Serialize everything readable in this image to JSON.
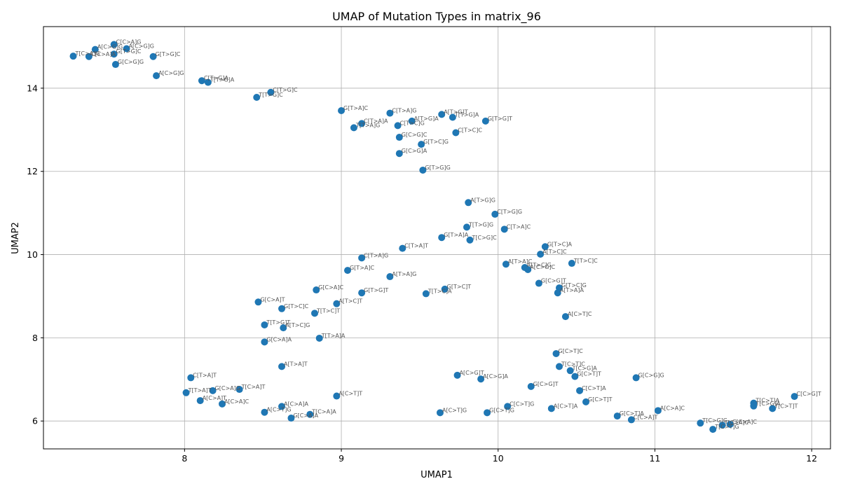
{
  "chart_data": {
    "type": "scatter",
    "title": "UMAP of Mutation Types in matrix_96",
    "xlabel": "UMAP1",
    "ylabel": "UMAP2",
    "xlim": [
      7.1,
      12.12
    ],
    "ylim": [
      5.33,
      15.48
    ],
    "xticks": [
      8,
      9,
      10,
      11,
      12
    ],
    "yticks": [
      6,
      8,
      10,
      12,
      14
    ],
    "grid": true,
    "marker_color": "#1f77b4",
    "label_color": "#555555",
    "points": [
      {
        "label": "C[C>A]G",
        "x": 7.55,
        "y": 15.05
      },
      {
        "label": "A[C>G]G",
        "x": 7.43,
        "y": 14.93
      },
      {
        "label": "A[C>G]G",
        "x": 7.63,
        "y": 14.95
      },
      {
        "label": "G[T>G]C",
        "x": 7.55,
        "y": 14.82
      },
      {
        "label": "T[C>A]G",
        "x": 7.29,
        "y": 14.77
      },
      {
        "label": "C[C>A]A",
        "x": 7.39,
        "y": 14.76
      },
      {
        "label": "G[T>G]C",
        "x": 7.8,
        "y": 14.76
      },
      {
        "label": "G[C>G]G",
        "x": 7.56,
        "y": 14.57
      },
      {
        "label": "A[C>G]G",
        "x": 7.82,
        "y": 14.3
      },
      {
        "label": "C[T>G]A",
        "x": 8.11,
        "y": 14.18
      },
      {
        "label": "T[T>G]A",
        "x": 8.15,
        "y": 14.14
      },
      {
        "label": "C[T>G]C",
        "x": 8.55,
        "y": 13.9
      },
      {
        "label": "T[T>G]C",
        "x": 8.46,
        "y": 13.78
      },
      {
        "label": "G[T>A]C",
        "x": 9.0,
        "y": 13.46
      },
      {
        "label": "C[T>A]G",
        "x": 9.31,
        "y": 13.4
      },
      {
        "label": "A[T>G]T",
        "x": 9.64,
        "y": 13.37
      },
      {
        "label": "T[T>G]A",
        "x": 9.71,
        "y": 13.3
      },
      {
        "label": "A[T>G]A",
        "x": 9.45,
        "y": 13.21
      },
      {
        "label": "G[T>G]T",
        "x": 9.92,
        "y": 13.21
      },
      {
        "label": "C[T>A]A",
        "x": 9.13,
        "y": 13.15
      },
      {
        "label": "C[T>C]G",
        "x": 9.36,
        "y": 13.1
      },
      {
        "label": "T[T>A]G",
        "x": 9.08,
        "y": 13.05
      },
      {
        "label": "C[T>C]C",
        "x": 9.73,
        "y": 12.93
      },
      {
        "label": "G[C>G]C",
        "x": 9.37,
        "y": 12.82
      },
      {
        "label": "G[T>C]G",
        "x": 9.51,
        "y": 12.65
      },
      {
        "label": "G[C>G]A",
        "x": 9.37,
        "y": 12.43
      },
      {
        "label": "G[T>G]G",
        "x": 9.52,
        "y": 12.03
      },
      {
        "label": "A[T>G]G",
        "x": 9.81,
        "y": 11.25
      },
      {
        "label": "C[T>G]G",
        "x": 9.98,
        "y": 10.97
      },
      {
        "label": "T[T>G]G",
        "x": 9.8,
        "y": 10.66
      },
      {
        "label": "C[T>A]C",
        "x": 10.04,
        "y": 10.61
      },
      {
        "label": "G[T>A]A",
        "x": 9.64,
        "y": 10.41
      },
      {
        "label": "T[C>G]C",
        "x": 9.82,
        "y": 10.35
      },
      {
        "label": "G[T>C]A",
        "x": 10.3,
        "y": 10.19
      },
      {
        "label": "C[T>A]T",
        "x": 9.39,
        "y": 10.15
      },
      {
        "label": "A[T>C]C",
        "x": 10.27,
        "y": 10.01
      },
      {
        "label": "C[T>A]G",
        "x": 9.13,
        "y": 9.92
      },
      {
        "label": "A[T>A]C",
        "x": 10.05,
        "y": 9.77
      },
      {
        "label": "T[T>C]C",
        "x": 10.47,
        "y": 9.79
      },
      {
        "label": "A[T>C]G",
        "x": 10.17,
        "y": 9.69
      },
      {
        "label": "A[C>G]C",
        "x": 10.19,
        "y": 9.64
      },
      {
        "label": "G[T>A]C",
        "x": 9.04,
        "y": 9.62
      },
      {
        "label": "A[T>A]G",
        "x": 9.31,
        "y": 9.47
      },
      {
        "label": "G[C>G]T",
        "x": 10.26,
        "y": 9.31
      },
      {
        "label": "G[T>C]G",
        "x": 10.39,
        "y": 9.2
      },
      {
        "label": "G[C>A]C",
        "x": 8.84,
        "y": 9.15
      },
      {
        "label": "G[T>C]T",
        "x": 9.66,
        "y": 9.17
      },
      {
        "label": "A[T>A]A",
        "x": 10.38,
        "y": 9.08
      },
      {
        "label": "G[T>G]T",
        "x": 9.13,
        "y": 9.08
      },
      {
        "label": "T[T>C]A",
        "x": 9.54,
        "y": 9.06
      },
      {
        "label": "G[C>A]T",
        "x": 8.47,
        "y": 8.86
      },
      {
        "label": "A[T>C]T",
        "x": 8.97,
        "y": 8.82
      },
      {
        "label": "G[T>C]C",
        "x": 8.62,
        "y": 8.7
      },
      {
        "label": "T[T>C]T",
        "x": 8.83,
        "y": 8.59
      },
      {
        "label": "A[C>T]C",
        "x": 10.43,
        "y": 8.51
      },
      {
        "label": "T[T>G]T",
        "x": 8.51,
        "y": 8.31
      },
      {
        "label": "A[T>C]G",
        "x": 8.63,
        "y": 8.24
      },
      {
        "label": "T[T>A]A",
        "x": 8.86,
        "y": 7.99
      },
      {
        "label": "G[C>A]A",
        "x": 8.51,
        "y": 7.9
      },
      {
        "label": "G[C>T]C",
        "x": 10.37,
        "y": 7.62
      },
      {
        "label": "A[T>A]T",
        "x": 8.62,
        "y": 7.31
      },
      {
        "label": "T[C>T]C",
        "x": 10.39,
        "y": 7.31
      },
      {
        "label": "T[C>G]A",
        "x": 10.46,
        "y": 7.21
      },
      {
        "label": "A[C>G]T",
        "x": 9.74,
        "y": 7.1
      },
      {
        "label": "G[C>T]T",
        "x": 10.49,
        "y": 7.07
      },
      {
        "label": "C[T>A]T",
        "x": 8.04,
        "y": 7.04
      },
      {
        "label": "G[C>G]G",
        "x": 10.88,
        "y": 7.04
      },
      {
        "label": "A[C>G]A",
        "x": 9.89,
        "y": 7.01
      },
      {
        "label": "G[C>G]T",
        "x": 10.21,
        "y": 6.83
      },
      {
        "label": "T[C>A]T",
        "x": 8.35,
        "y": 6.76
      },
      {
        "label": "C[C>T]A",
        "x": 10.52,
        "y": 6.73
      },
      {
        "label": "G[C>A]G",
        "x": 8.18,
        "y": 6.73
      },
      {
        "label": "T[T>A]T",
        "x": 8.01,
        "y": 6.68
      },
      {
        "label": "A[C>T]T",
        "x": 8.97,
        "y": 6.6
      },
      {
        "label": "C[C>G]T",
        "x": 11.89,
        "y": 6.59
      },
      {
        "label": "A[C>A]T",
        "x": 8.1,
        "y": 6.49
      },
      {
        "label": "G[C>T]T",
        "x": 10.56,
        "y": 6.46
      },
      {
        "label": "T[C>T]A",
        "x": 11.63,
        "y": 6.43
      },
      {
        "label": "A[C>A]C",
        "x": 8.24,
        "y": 6.41
      },
      {
        "label": "T[C>G]A",
        "x": 11.63,
        "y": 6.36
      },
      {
        "label": "A[C>A]A",
        "x": 8.62,
        "y": 6.35
      },
      {
        "label": "C[C>T]G",
        "x": 10.06,
        "y": 6.35
      },
      {
        "label": "T[C>T]T",
        "x": 11.75,
        "y": 6.3
      },
      {
        "label": "A[C>T]A",
        "x": 10.34,
        "y": 6.3
      },
      {
        "label": "A[C>A]C",
        "x": 11.02,
        "y": 6.25
      },
      {
        "label": "A[C>T]G",
        "x": 8.51,
        "y": 6.21
      },
      {
        "label": "A[C>T]G",
        "x": 9.63,
        "y": 6.2
      },
      {
        "label": "G[C>T]G",
        "x": 9.93,
        "y": 6.2
      },
      {
        "label": "T[C>A]A",
        "x": 8.8,
        "y": 6.16
      },
      {
        "label": "G[C>T]A",
        "x": 10.76,
        "y": 6.12
      },
      {
        "label": "G[C>A]A",
        "x": 8.68,
        "y": 6.07
      },
      {
        "label": "C[C>A]T",
        "x": 10.85,
        "y": 6.03
      },
      {
        "label": "T[C>G]C",
        "x": 11.29,
        "y": 5.95
      },
      {
        "label": "C[C>A]C",
        "x": 11.48,
        "y": 5.92
      },
      {
        "label": "T[C>A]C",
        "x": 11.43,
        "y": 5.9
      },
      {
        "label": "T[C>T]G",
        "x": 11.37,
        "y": 5.8
      }
    ]
  }
}
